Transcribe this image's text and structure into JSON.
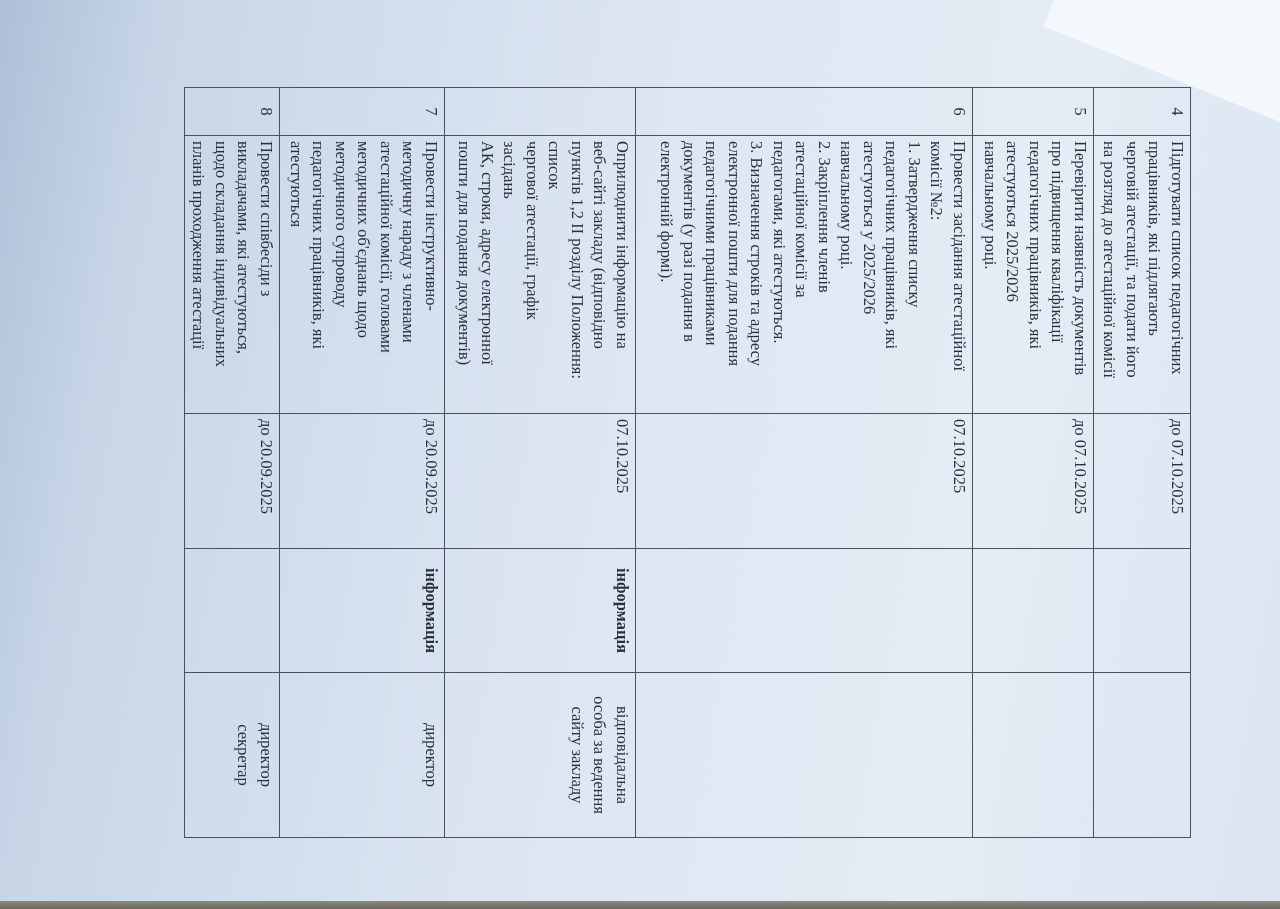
{
  "document": {
    "rows": [
      {
        "num": "4",
        "task": "Підготувати список педагогічних\nпрацівників, які підлягають\nчерговій атестації, та подати його\nна розгляд до атестаційної комісії",
        "deadline": "до 07.10.2025",
        "form": "",
        "responsible": ""
      },
      {
        "num": "5",
        "task": "Перевірити наявність документів\nпро підвищення кваліфікації\nпедагогічних працівників, які\nатестуються 2025/2026\nнавчальному році.",
        "deadline": "до 07.10.2025",
        "form": "",
        "responsible": ""
      },
      {
        "num": "6",
        "task": "Провести засідання атестаційної\nкомісії №2:\n1. Затвердження списку\nпедагогічних працівників, які\nатестуються у 2025/2026\nнавчальному році.\n2. Закріплення членів\nатестаційної комісії за\nпедагогами, які атестуються.\n3. Визначення строків та адресу\nелектронної пошти для подання\nпедагогічними працівниками\nдокументів (у разі подання в\nелектронній формі).",
        "deadline": "07.10.2025",
        "form": "",
        "responsible": ""
      },
      {
        "num": "",
        "task": "Оприлюднити інформацію на\nвеб-сайті закладу (відповідно\nпунктів 1,2 ІІ розділу Положення:\nсписок\nчергової атестації, графік\nзасідань\nАК, строки, адресу електронної\nпошти для подання документів)",
        "deadline": "07.10.2025",
        "form": "інформація",
        "responsible": "відповідальна\nособа за ведення\nсайту закладу"
      },
      {
        "num": "7",
        "task": "Провести інструктивно-\nметодичну нараду з членами\nатестаційної комісії, головами\nметодичних об'єднань щодо\nметодичного супроводу\nпедагогічних працівників, які\nатестуються",
        "deadline": "до 20.09.2025",
        "form": "інформація",
        "responsible": "директор"
      },
      {
        "num": "8",
        "task": "Провести співбесіди з\nвикладачами, які атестуються,\nщодо складання індивідуальних\nпланів проходження атестації",
        "deadline": "до 20.09.2025",
        "form": "",
        "responsible": "директор\nсекретар"
      }
    ]
  }
}
